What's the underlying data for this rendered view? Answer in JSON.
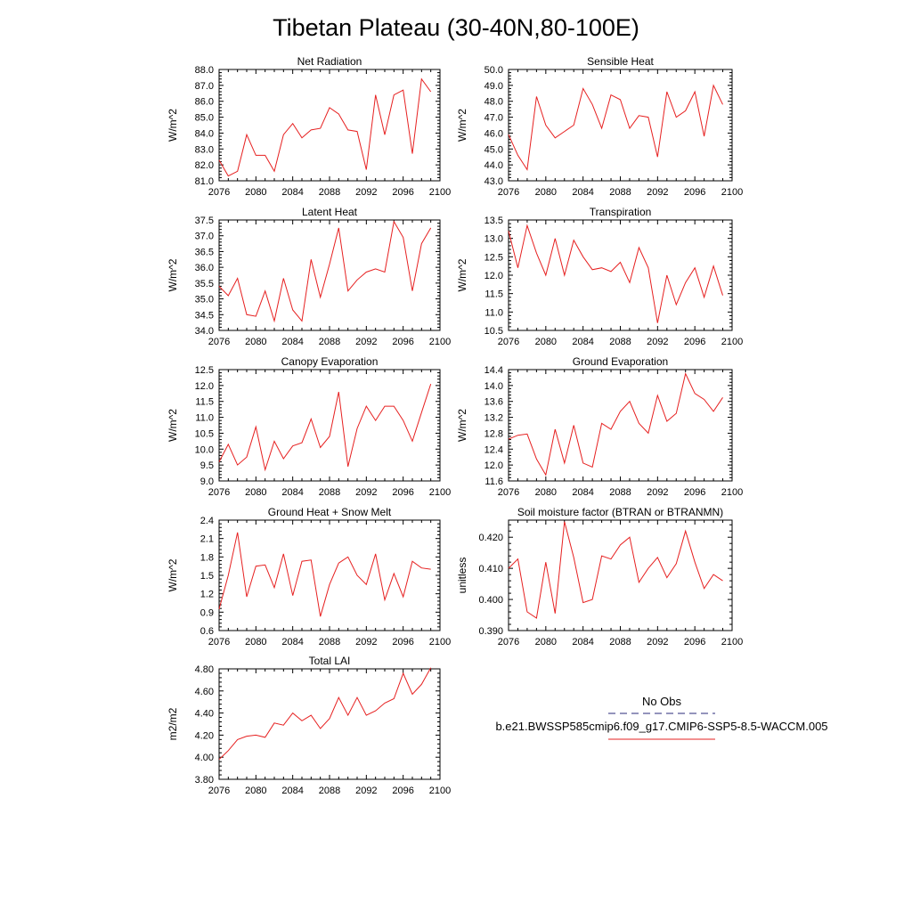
{
  "title": "Tibetan Plateau (30-40N,80-100E)",
  "legend": {
    "items": [
      {
        "label": "No Obs",
        "color": "#2a2a7a",
        "dashed": true
      },
      {
        "label": "b.e21.BWSSP585cmip6.f09_g17.CMIP6-SSP5-8.5-WACCM.005",
        "color": "#e62020",
        "dashed": false
      }
    ]
  },
  "chart_data": [
    {
      "type": "line",
      "title": "Net Radiation",
      "ylabel": "W/m^2",
      "x": [
        2076,
        2077,
        2078,
        2079,
        2080,
        2081,
        2082,
        2083,
        2084,
        2085,
        2086,
        2087,
        2088,
        2089,
        2090,
        2091,
        2092,
        2093,
        2094,
        2095,
        2096,
        2097,
        2098,
        2099
      ],
      "values": [
        82.3,
        81.3,
        81.6,
        83.9,
        82.6,
        82.6,
        81.6,
        83.9,
        84.6,
        83.7,
        84.2,
        84.3,
        85.6,
        85.2,
        84.2,
        84.1,
        81.7,
        86.4,
        83.9,
        86.4,
        86.7,
        82.7,
        87.4,
        86.6
      ],
      "ylim": [
        81.0,
        88.0
      ],
      "yticks": [
        81.0,
        82.0,
        83.0,
        84.0,
        85.0,
        86.0,
        87.0,
        88.0
      ],
      "xlim": [
        2076,
        2100
      ],
      "xticks": [
        2076,
        2080,
        2084,
        2088,
        2092,
        2096,
        2100
      ],
      "color": "#e62020"
    },
    {
      "type": "line",
      "title": "Sensible Heat",
      "ylabel": "W/m^2",
      "x": [
        2076,
        2077,
        2078,
        2079,
        2080,
        2081,
        2082,
        2083,
        2084,
        2085,
        2086,
        2087,
        2088,
        2089,
        2090,
        2091,
        2092,
        2093,
        2094,
        2095,
        2096,
        2097,
        2098,
        2099
      ],
      "values": [
        45.9,
        44.6,
        43.7,
        48.3,
        46.5,
        45.7,
        46.1,
        46.5,
        48.8,
        47.8,
        46.3,
        48.4,
        48.1,
        46.3,
        47.1,
        47.0,
        44.5,
        48.6,
        47.0,
        47.4,
        48.6,
        45.8,
        49.0,
        47.8
      ],
      "ylim": [
        43.0,
        50.0
      ],
      "yticks": [
        43.0,
        44.0,
        45.0,
        46.0,
        47.0,
        48.0,
        49.0,
        50.0
      ],
      "xlim": [
        2076,
        2100
      ],
      "xticks": [
        2076,
        2080,
        2084,
        2088,
        2092,
        2096,
        2100
      ],
      "color": "#e62020"
    },
    {
      "type": "line",
      "title": "Latent Heat",
      "ylabel": "W/m^2",
      "x": [
        2076,
        2077,
        2078,
        2079,
        2080,
        2081,
        2082,
        2083,
        2084,
        2085,
        2086,
        2087,
        2088,
        2089,
        2090,
        2091,
        2092,
        2093,
        2094,
        2095,
        2096,
        2097,
        2098,
        2099
      ],
      "values": [
        35.4,
        35.1,
        35.65,
        34.5,
        34.45,
        35.25,
        34.3,
        35.65,
        34.65,
        34.3,
        36.25,
        35.05,
        36.1,
        37.25,
        35.25,
        35.6,
        35.85,
        35.95,
        35.85,
        37.45,
        36.95,
        35.25,
        36.75,
        37.25
      ],
      "ylim": [
        34.0,
        37.5
      ],
      "yticks": [
        34.0,
        34.5,
        35.0,
        35.5,
        36.0,
        36.5,
        37.0,
        37.5
      ],
      "xlim": [
        2076,
        2100
      ],
      "xticks": [
        2076,
        2080,
        2084,
        2088,
        2092,
        2096,
        2100
      ],
      "color": "#e62020"
    },
    {
      "type": "line",
      "title": "Transpiration",
      "ylabel": "W/m^2",
      "x": [
        2076,
        2077,
        2078,
        2079,
        2080,
        2081,
        2082,
        2083,
        2084,
        2085,
        2086,
        2087,
        2088,
        2089,
        2090,
        2091,
        2092,
        2093,
        2094,
        2095,
        2096,
        2097,
        2098,
        2099
      ],
      "values": [
        13.2,
        12.2,
        13.35,
        12.6,
        12.0,
        13.0,
        12.0,
        12.95,
        12.5,
        12.15,
        12.2,
        12.1,
        12.35,
        11.8,
        12.75,
        12.2,
        10.7,
        12.0,
        11.2,
        11.8,
        12.2,
        11.4,
        12.25,
        11.45
      ],
      "ylim": [
        10.5,
        13.5
      ],
      "yticks": [
        10.5,
        11.0,
        11.5,
        12.0,
        12.5,
        13.0,
        13.5
      ],
      "xlim": [
        2076,
        2100
      ],
      "xticks": [
        2076,
        2080,
        2084,
        2088,
        2092,
        2096,
        2100
      ],
      "color": "#e62020"
    },
    {
      "type": "line",
      "title": "Canopy Evaporation",
      "ylabel": "W/m^2",
      "x": [
        2076,
        2077,
        2078,
        2079,
        2080,
        2081,
        2082,
        2083,
        2084,
        2085,
        2086,
        2087,
        2088,
        2089,
        2090,
        2091,
        2092,
        2093,
        2094,
        2095,
        2096,
        2097,
        2098,
        2099
      ],
      "values": [
        9.6,
        10.15,
        9.5,
        9.75,
        10.7,
        9.35,
        10.25,
        9.7,
        10.1,
        10.2,
        10.95,
        10.05,
        10.4,
        11.8,
        9.45,
        10.65,
        11.35,
        10.9,
        11.35,
        11.35,
        10.9,
        10.25,
        11.15,
        12.05
      ],
      "ylim": [
        9.0,
        12.5
      ],
      "yticks": [
        9.0,
        9.5,
        10.0,
        10.5,
        11.0,
        11.5,
        12.0,
        12.5
      ],
      "xlim": [
        2076,
        2100
      ],
      "xticks": [
        2076,
        2080,
        2084,
        2088,
        2092,
        2096,
        2100
      ],
      "color": "#e62020"
    },
    {
      "type": "line",
      "title": "Ground Evaporation",
      "ylabel": "W/m^2",
      "x": [
        2076,
        2077,
        2078,
        2079,
        2080,
        2081,
        2082,
        2083,
        2084,
        2085,
        2086,
        2087,
        2088,
        2089,
        2090,
        2091,
        2092,
        2093,
        2094,
        2095,
        2096,
        2097,
        2098,
        2099
      ],
      "values": [
        12.65,
        12.75,
        12.78,
        12.15,
        11.75,
        12.9,
        12.05,
        13.0,
        12.05,
        11.95,
        13.05,
        12.9,
        13.35,
        13.6,
        13.05,
        12.8,
        13.75,
        13.1,
        13.3,
        14.3,
        13.8,
        13.65,
        13.35,
        13.7
      ],
      "ylim": [
        11.6,
        14.4
      ],
      "yticks": [
        11.6,
        12.0,
        12.4,
        12.8,
        13.2,
        13.6,
        14.0,
        14.4
      ],
      "xlim": [
        2076,
        2100
      ],
      "xticks": [
        2076,
        2080,
        2084,
        2088,
        2092,
        2096,
        2100
      ],
      "color": "#e62020"
    },
    {
      "type": "line",
      "title": "Ground Heat + Snow Melt",
      "ylabel": "W/m^2",
      "x": [
        2076,
        2077,
        2078,
        2079,
        2080,
        2081,
        2082,
        2083,
        2084,
        2085,
        2086,
        2087,
        2088,
        2089,
        2090,
        2091,
        2092,
        2093,
        2094,
        2095,
        2096,
        2097,
        2098,
        2099
      ],
      "values": [
        0.95,
        1.5,
        2.2,
        1.15,
        1.65,
        1.67,
        1.3,
        1.85,
        1.17,
        1.73,
        1.75,
        0.83,
        1.35,
        1.7,
        1.8,
        1.5,
        1.35,
        1.85,
        1.1,
        1.53,
        1.15,
        1.73,
        1.62,
        1.6
      ],
      "ylim": [
        0.6,
        2.4
      ],
      "yticks": [
        0.6,
        0.9,
        1.2,
        1.5,
        1.8,
        2.1,
        2.4
      ],
      "ytick_format": 1,
      "xlim": [
        2076,
        2100
      ],
      "xticks": [
        2076,
        2080,
        2084,
        2088,
        2092,
        2096,
        2100
      ],
      "color": "#e62020"
    },
    {
      "type": "line",
      "title": "Soil moisture factor (BTRAN or BTRANMN)",
      "ylabel": "unitless",
      "x": [
        2076,
        2077,
        2078,
        2079,
        2080,
        2081,
        2082,
        2083,
        2084,
        2085,
        2086,
        2087,
        2088,
        2089,
        2090,
        2091,
        2092,
        2093,
        2094,
        2095,
        2096,
        2097,
        2098,
        2099
      ],
      "values": [
        0.41,
        0.413,
        0.396,
        0.394,
        0.412,
        0.3955,
        0.425,
        0.4135,
        0.399,
        0.4,
        0.414,
        0.413,
        0.4175,
        0.42,
        0.4055,
        0.41,
        0.4135,
        0.407,
        0.4115,
        0.422,
        0.412,
        0.4035,
        0.408,
        0.406
      ],
      "ylim": [
        0.39,
        0.4255
      ],
      "yticks": [
        0.39,
        0.4,
        0.41,
        0.42
      ],
      "ytick_format": 3,
      "xlim": [
        2076,
        2100
      ],
      "xticks": [
        2076,
        2080,
        2084,
        2088,
        2092,
        2096,
        2100
      ],
      "color": "#e62020"
    },
    {
      "type": "line",
      "title": "Total LAI",
      "ylabel": "m2/m2",
      "x": [
        2076,
        2077,
        2078,
        2079,
        2080,
        2081,
        2082,
        2083,
        2084,
        2085,
        2086,
        2087,
        2088,
        2089,
        2090,
        2091,
        2092,
        2093,
        2094,
        2095,
        2096,
        2097,
        2098,
        2099
      ],
      "values": [
        3.98,
        4.06,
        4.16,
        4.19,
        4.2,
        4.18,
        4.31,
        4.29,
        4.4,
        4.33,
        4.38,
        4.26,
        4.35,
        4.54,
        4.38,
        4.54,
        4.38,
        4.42,
        4.49,
        4.53,
        4.76,
        4.57,
        4.66,
        4.81
      ],
      "ylim": [
        3.8,
        4.8
      ],
      "yticks": [
        3.8,
        4.0,
        4.2,
        4.4,
        4.6,
        4.8
      ],
      "ytick_format": 2,
      "xlim": [
        2076,
        2100
      ],
      "xticks": [
        2076,
        2080,
        2084,
        2088,
        2092,
        2096,
        2100
      ],
      "color": "#e62020"
    }
  ]
}
